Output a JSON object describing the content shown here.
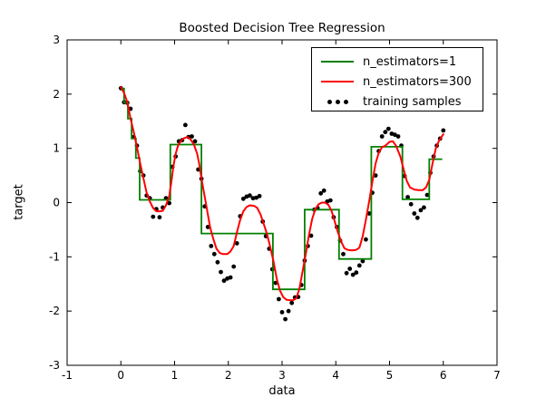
{
  "title": "Boosted Decision Tree Regression",
  "chart_data": {
    "type": "line",
    "title": "Boosted Decision Tree Regression",
    "xlabel": "data",
    "ylabel": "target",
    "xlim": [
      -1,
      7
    ],
    "ylim": [
      -3,
      3
    ],
    "xticks": [
      -1,
      0,
      1,
      2,
      3,
      4,
      5,
      6,
      7
    ],
    "yticks": [
      3,
      2,
      1,
      0,
      -1,
      -2,
      -3
    ],
    "grid": false,
    "background": "#ffffff",
    "legend": {
      "position": "upper right",
      "entries": [
        {
          "label": "n_estimators=1",
          "color": "#008000",
          "marker": "line"
        },
        {
          "label": "n_estimators=300",
          "color": "#ff0000",
          "marker": "line"
        },
        {
          "label": "training samples",
          "color": "#000000",
          "marker": "dots"
        }
      ]
    },
    "series": [
      {
        "name": "training samples",
        "type": "scatter",
        "color": "#000000",
        "marker": "circle",
        "points": [
          [
            0,
            2.11
          ],
          [
            0.06,
            1.85
          ],
          [
            0.12,
            1.84
          ],
          [
            0.18,
            1.73
          ],
          [
            0.24,
            1.21
          ],
          [
            0.3,
            1.05
          ],
          [
            0.36,
            0.58
          ],
          [
            0.42,
            0.5
          ],
          [
            0.48,
            0.13
          ],
          [
            0.54,
            0.08
          ],
          [
            0.6,
            -0.26
          ],
          [
            0.66,
            -0.12
          ],
          [
            0.72,
            -0.27
          ],
          [
            0.78,
            -0.09
          ],
          [
            0.84,
            0.08
          ],
          [
            0.9,
            -0.01
          ],
          [
            0.96,
            0.66
          ],
          [
            1.02,
            0.85
          ],
          [
            1.08,
            1.13
          ],
          [
            1.14,
            1.15
          ],
          [
            1.2,
            1.43
          ],
          [
            1.26,
            1.21
          ],
          [
            1.32,
            1.22
          ],
          [
            1.38,
            1.13
          ],
          [
            1.44,
            0.61
          ],
          [
            1.5,
            0.44
          ],
          [
            1.56,
            -0.07
          ],
          [
            1.62,
            -0.45
          ],
          [
            1.68,
            -0.8
          ],
          [
            1.74,
            -0.95
          ],
          [
            1.8,
            -1.1
          ],
          [
            1.86,
            -1.28
          ],
          [
            1.92,
            -1.44
          ],
          [
            1.98,
            -1.4
          ],
          [
            2.04,
            -1.38
          ],
          [
            2.1,
            -1.18
          ],
          [
            2.16,
            -0.75
          ],
          [
            2.22,
            -0.25
          ],
          [
            2.28,
            0.07
          ],
          [
            2.34,
            0.11
          ],
          [
            2.4,
            0.13
          ],
          [
            2.46,
            0.08
          ],
          [
            2.52,
            0.09
          ],
          [
            2.58,
            0.12
          ],
          [
            2.64,
            -0.35
          ],
          [
            2.7,
            -0.62
          ],
          [
            2.76,
            -0.85
          ],
          [
            2.82,
            -1.23
          ],
          [
            2.88,
            -1.48
          ],
          [
            2.94,
            -1.78
          ],
          [
            3,
            -2.02
          ],
          [
            3.06,
            -2.15
          ],
          [
            3.12,
            -2
          ],
          [
            3.18,
            -1.85
          ],
          [
            3.24,
            -1.75
          ],
          [
            3.3,
            -1.74
          ],
          [
            3.36,
            -1.52
          ],
          [
            3.42,
            -1.07
          ],
          [
            3.48,
            -0.8
          ],
          [
            3.54,
            -0.61
          ],
          [
            3.6,
            -0.13
          ],
          [
            3.66,
            -0.1
          ],
          [
            3.72,
            0.17
          ],
          [
            3.78,
            0.22
          ],
          [
            3.84,
            0.02
          ],
          [
            3.9,
            0.04
          ],
          [
            3.96,
            -0.27
          ],
          [
            4.02,
            -0.45
          ],
          [
            4.08,
            -0.7
          ],
          [
            4.14,
            -0.95
          ],
          [
            4.2,
            -1.3
          ],
          [
            4.26,
            -1.22
          ],
          [
            4.32,
            -1.33
          ],
          [
            4.38,
            -1.29
          ],
          [
            4.44,
            -1.16
          ],
          [
            4.5,
            -1.08
          ],
          [
            4.56,
            -0.68
          ],
          [
            4.62,
            -0.2
          ],
          [
            4.68,
            0.18
          ],
          [
            4.74,
            0.5
          ],
          [
            4.8,
            0.95
          ],
          [
            4.86,
            1.22
          ],
          [
            4.92,
            1.3
          ],
          [
            4.98,
            1.36
          ],
          [
            5.04,
            1.27
          ],
          [
            5.1,
            1.25
          ],
          [
            5.16,
            1.22
          ],
          [
            5.22,
            1.05
          ],
          [
            5.28,
            0.49
          ],
          [
            5.34,
            0.1
          ],
          [
            5.4,
            -0.03
          ],
          [
            5.46,
            -0.2
          ],
          [
            5.52,
            -0.28
          ],
          [
            5.58,
            -0.14
          ],
          [
            5.64,
            -0.09
          ],
          [
            5.7,
            0.14
          ],
          [
            5.76,
            0.55
          ],
          [
            5.82,
            0.85
          ],
          [
            5.88,
            1.05
          ],
          [
            5.94,
            1.18
          ],
          [
            6,
            1.33
          ]
        ]
      },
      {
        "name": "n_estimators=1",
        "type": "step",
        "color": "#008000",
        "steps": [
          [
            0,
            0.06,
            2.1
          ],
          [
            0.06,
            0.13,
            1.84
          ],
          [
            0.13,
            0.2,
            1.55
          ],
          [
            0.2,
            0.28,
            1.18
          ],
          [
            0.28,
            0.35,
            0.82
          ],
          [
            0.35,
            0.92,
            0.05
          ],
          [
            0.92,
            1.5,
            1.07
          ],
          [
            1.5,
            2.83,
            -0.57
          ],
          [
            2.83,
            3.42,
            -1.6
          ],
          [
            3.42,
            4.06,
            -0.13
          ],
          [
            4.06,
            4.66,
            -1.04
          ],
          [
            4.66,
            5.24,
            1.03
          ],
          [
            5.24,
            5.74,
            0.06
          ],
          [
            5.74,
            5.98,
            0.8
          ]
        ]
      },
      {
        "name": "n_estimators=300",
        "type": "line",
        "color": "#ff0000",
        "points": [
          [
            0,
            2.13
          ],
          [
            0.06,
            2.02
          ],
          [
            0.12,
            1.85
          ],
          [
            0.18,
            1.55
          ],
          [
            0.24,
            1.3
          ],
          [
            0.3,
            1.02
          ],
          [
            0.36,
            0.72
          ],
          [
            0.42,
            0.45
          ],
          [
            0.48,
            0.18
          ],
          [
            0.54,
            0.02
          ],
          [
            0.6,
            -0.1
          ],
          [
            0.66,
            -0.16
          ],
          [
            0.72,
            -0.16
          ],
          [
            0.78,
            -0.15
          ],
          [
            0.84,
            -0.05
          ],
          [
            0.9,
            0.12
          ],
          [
            0.94,
            0.38
          ],
          [
            0.98,
            0.68
          ],
          [
            1.02,
            0.9
          ],
          [
            1.06,
            1.04
          ],
          [
            1.12,
            1.14
          ],
          [
            1.18,
            1.19
          ],
          [
            1.24,
            1.21
          ],
          [
            1.3,
            1.16
          ],
          [
            1.36,
            1.07
          ],
          [
            1.42,
            0.9
          ],
          [
            1.46,
            0.7
          ],
          [
            1.5,
            0.45
          ],
          [
            1.54,
            0.22
          ],
          [
            1.58,
            0
          ],
          [
            1.62,
            -0.22
          ],
          [
            1.66,
            -0.45
          ],
          [
            1.72,
            -0.67
          ],
          [
            1.78,
            -0.85
          ],
          [
            1.84,
            -0.93
          ],
          [
            1.9,
            -0.95
          ],
          [
            1.98,
            -0.95
          ],
          [
            2.04,
            -0.9
          ],
          [
            2.1,
            -0.8
          ],
          [
            2.16,
            -0.55
          ],
          [
            2.22,
            -0.32
          ],
          [
            2.28,
            -0.16
          ],
          [
            2.34,
            -0.08
          ],
          [
            2.4,
            -0.05
          ],
          [
            2.48,
            -0.06
          ],
          [
            2.54,
            -0.1
          ],
          [
            2.6,
            -0.22
          ],
          [
            2.66,
            -0.4
          ],
          [
            2.72,
            -0.58
          ],
          [
            2.78,
            -0.82
          ],
          [
            2.84,
            -1.08
          ],
          [
            2.9,
            -1.4
          ],
          [
            2.96,
            -1.62
          ],
          [
            3.02,
            -1.74
          ],
          [
            3.08,
            -1.79
          ],
          [
            3.14,
            -1.8
          ],
          [
            3.2,
            -1.8
          ],
          [
            3.26,
            -1.77
          ],
          [
            3.32,
            -1.6
          ],
          [
            3.38,
            -1.28
          ],
          [
            3.44,
            -0.95
          ],
          [
            3.5,
            -0.6
          ],
          [
            3.56,
            -0.3
          ],
          [
            3.62,
            -0.12
          ],
          [
            3.68,
            -0.03
          ],
          [
            3.74,
            0
          ],
          [
            3.8,
            0
          ],
          [
            3.86,
            -0.04
          ],
          [
            3.92,
            -0.15
          ],
          [
            3.98,
            -0.35
          ],
          [
            4.04,
            -0.55
          ],
          [
            4.1,
            -0.72
          ],
          [
            4.16,
            -0.84
          ],
          [
            4.22,
            -0.87
          ],
          [
            4.3,
            -0.88
          ],
          [
            4.38,
            -0.87
          ],
          [
            4.44,
            -0.83
          ],
          [
            4.5,
            -0.62
          ],
          [
            4.56,
            -0.32
          ],
          [
            4.62,
            0.02
          ],
          [
            4.68,
            0.38
          ],
          [
            4.74,
            0.72
          ],
          [
            4.8,
            0.92
          ],
          [
            4.86,
            1.02
          ],
          [
            4.92,
            1.05
          ],
          [
            5,
            1.12
          ],
          [
            5.06,
            1.13
          ],
          [
            5.12,
            1.05
          ],
          [
            5.2,
            0.85
          ],
          [
            5.26,
            0.62
          ],
          [
            5.32,
            0.4
          ],
          [
            5.38,
            0.28
          ],
          [
            5.46,
            0.24
          ],
          [
            5.54,
            0.23
          ],
          [
            5.62,
            0.23
          ],
          [
            5.68,
            0.28
          ],
          [
            5.74,
            0.42
          ],
          [
            5.8,
            0.72
          ],
          [
            5.86,
            1
          ],
          [
            5.92,
            1.14
          ],
          [
            6,
            1.26
          ]
        ]
      }
    ]
  }
}
